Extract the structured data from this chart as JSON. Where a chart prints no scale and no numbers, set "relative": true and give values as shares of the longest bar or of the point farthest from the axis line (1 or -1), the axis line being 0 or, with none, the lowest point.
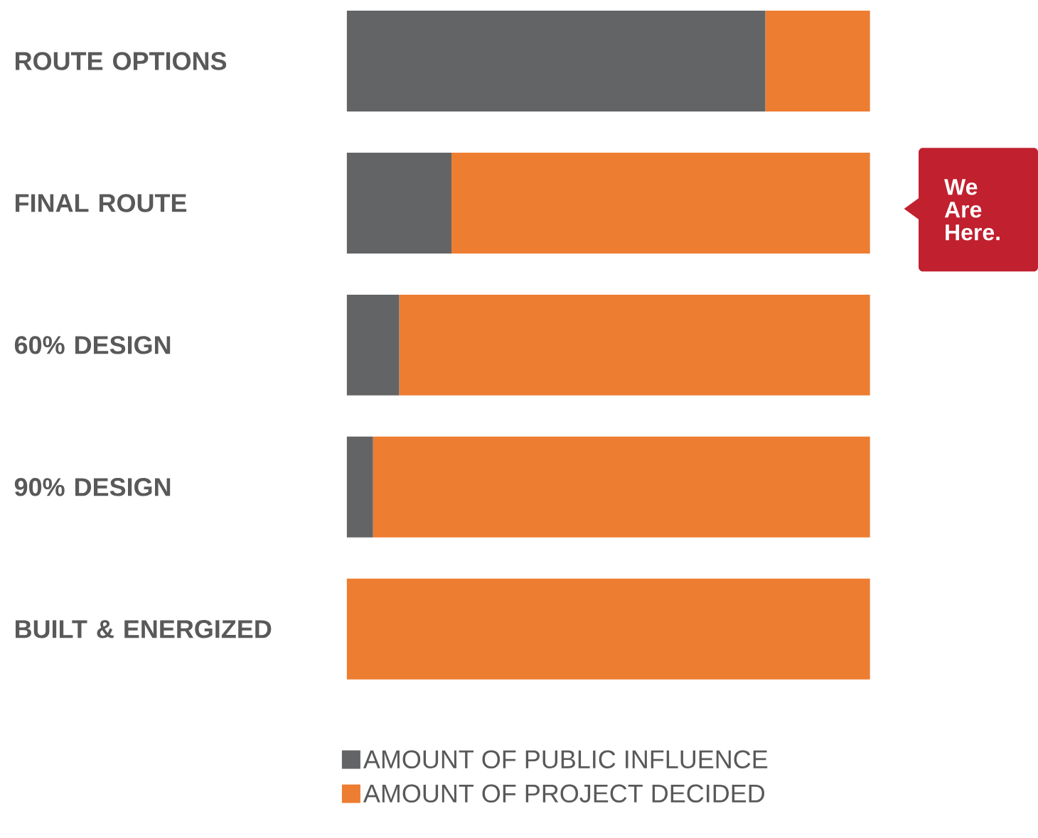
{
  "chart_data": {
    "type": "bar",
    "orientation": "horizontal",
    "stacked": true,
    "relative": true,
    "legend": "bottom",
    "categories": [
      "ROUTE OPTIONS",
      "FINAL ROUTE",
      "60% DESIGN",
      "90% DESIGN",
      "BUILT & ENERGIZED"
    ],
    "series": [
      {
        "name": "AMOUNT OF PUBLIC INFLUENCE",
        "color": "#636466",
        "values": [
          0.8,
          0.2,
          0.1,
          0.05,
          0
        ]
      },
      {
        "name": "AMOUNT OF PROJECT DECIDED",
        "color": "#ed7d31",
        "values": [
          0.2,
          0.8,
          0.9,
          0.95,
          1
        ]
      }
    ],
    "annotations": [
      "We Are Here."
    ]
  }
}
